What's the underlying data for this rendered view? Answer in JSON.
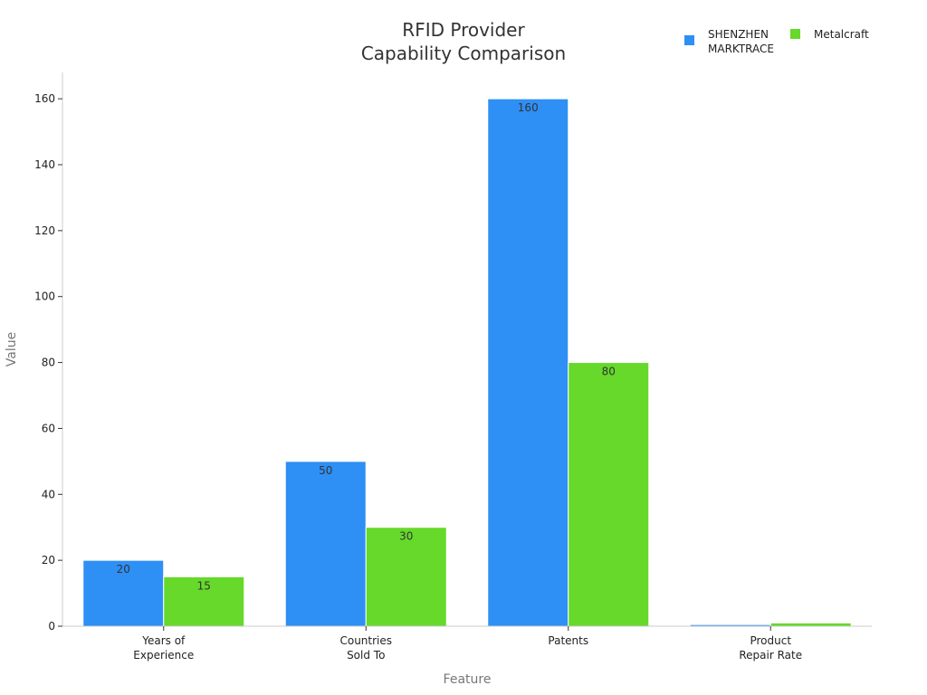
{
  "chart_data": {
    "type": "bar",
    "title": [
      "RFID Provider",
      "Capability Comparison"
    ],
    "xlabel": "Feature",
    "ylabel": "Value",
    "categories": [
      [
        "Years of",
        "Experience"
      ],
      [
        "Countries",
        "Sold To"
      ],
      [
        "Patents"
      ],
      [
        "Product",
        "Repair Rate"
      ]
    ],
    "series": [
      {
        "name": [
          "SHENZHEN",
          "MARKTRACE"
        ],
        "color": "#2e8ff5",
        "values": [
          20,
          50,
          160,
          0.5
        ],
        "labels": [
          "20",
          "50",
          "160",
          ""
        ]
      },
      {
        "name": [
          "Metalcraft"
        ],
        "color": "#66d92b",
        "values": [
          15,
          30,
          80,
          1
        ],
        "labels": [
          "15",
          "30",
          "80",
          ""
        ]
      }
    ],
    "ylim": [
      0,
      168
    ],
    "yticks": [
      0,
      20,
      40,
      60,
      80,
      100,
      120,
      140,
      160
    ],
    "grid": false,
    "legend_position": "top-right"
  }
}
